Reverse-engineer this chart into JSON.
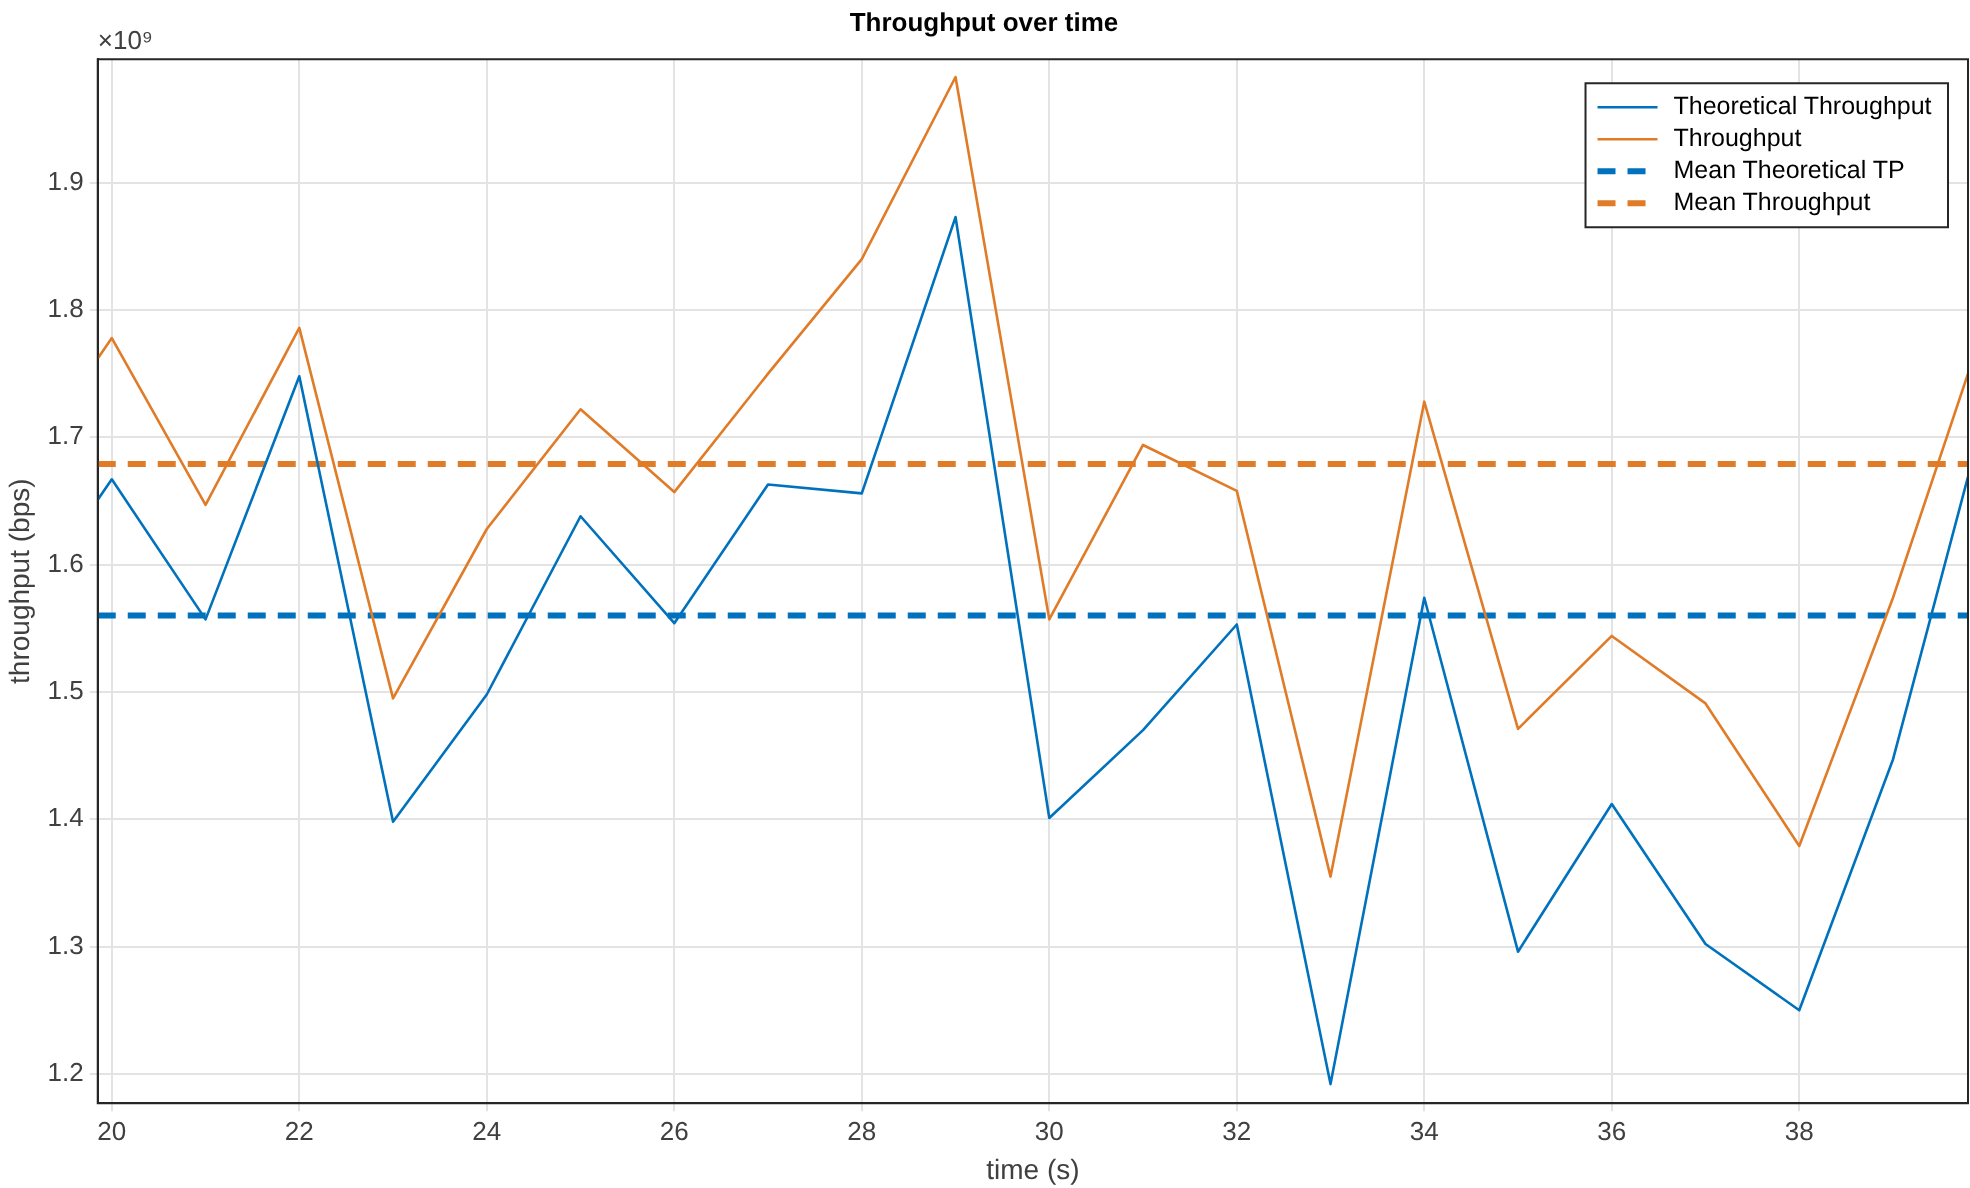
{
  "chart_data": {
    "type": "line",
    "title": "Throughput over time",
    "xlabel": "time (s)",
    "ylabel": "throughput (bps)",
    "annotations": [
      "×10⁹"
    ],
    "xlim": [
      19.85,
      39.8
    ],
    "xticks": [
      20,
      22,
      24,
      26,
      28,
      30,
      32,
      34,
      36,
      38
    ],
    "ylim": [
      1.177,
      1.997
    ],
    "yticks": [
      1.2,
      1.3,
      1.4,
      1.5,
      1.6,
      1.7,
      1.8,
      1.9
    ],
    "grid": true,
    "legend": "top right",
    "series": [
      {
        "name": "Theoretical Throughput",
        "color": "#0072bd",
        "x": [
          19.85,
          20,
          21,
          22,
          23,
          24,
          25,
          26,
          27,
          28,
          29,
          30,
          31,
          32,
          33,
          34,
          35,
          36,
          37,
          38,
          39,
          39.8
        ],
        "values": [
          1.651,
          1.667,
          1.557,
          1.748,
          1.398,
          1.498,
          1.638,
          1.554,
          1.663,
          1.656,
          1.873,
          1.401,
          1.47,
          1.553,
          1.192,
          1.574,
          1.296,
          1.412,
          1.302,
          1.25,
          1.447,
          1.669
        ]
      },
      {
        "name": "Throughput",
        "color": "#e07b28",
        "x": [
          19.85,
          20,
          21,
          22,
          23,
          24,
          25,
          26,
          27,
          28,
          29,
          30,
          31,
          32,
          33,
          34,
          35,
          36,
          37,
          38,
          39,
          39.8
        ],
        "values": [
          1.762,
          1.778,
          1.647,
          1.786,
          1.495,
          1.628,
          1.722,
          1.657,
          1.75,
          1.84,
          1.983,
          1.557,
          1.694,
          1.658,
          1.355,
          1.728,
          1.471,
          1.544,
          1.491,
          1.379,
          1.574,
          1.75
        ]
      },
      {
        "name": "Mean Theoretical TP",
        "color": "#0072bd",
        "line_style": "dashed",
        "x": [
          19.85,
          39.8
        ],
        "values": [
          1.56,
          1.56
        ]
      },
      {
        "name": "Mean Throughput",
        "color": "#e07b28",
        "line_style": "dashed",
        "x": [
          19.85,
          39.8
        ],
        "values": [
          1.679,
          1.679
        ]
      }
    ]
  }
}
